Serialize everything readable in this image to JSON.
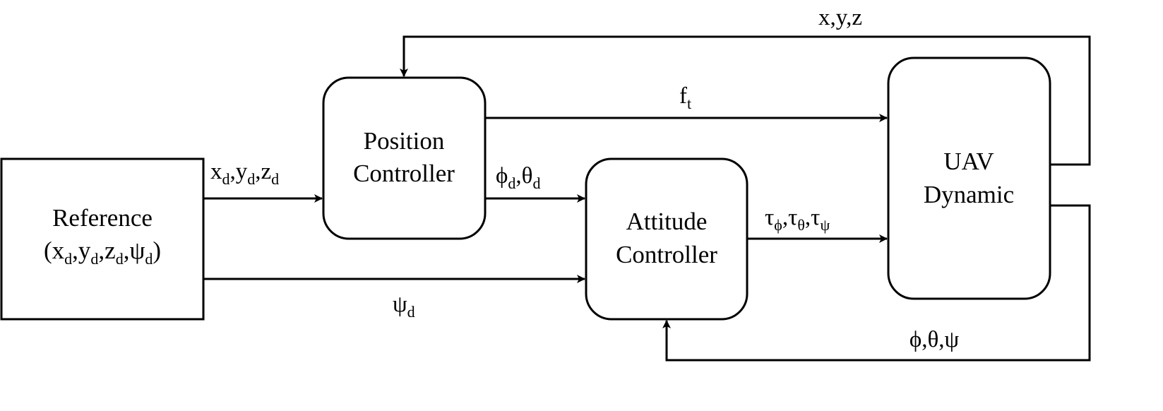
{
  "blocks": {
    "reference": {
      "line1": "Reference",
      "line2": "(x_d,y_d,z_d,ψ_d)"
    },
    "position_controller": {
      "line1": "Position",
      "line2": "Controller"
    },
    "attitude_controller": {
      "line1": "Attitude",
      "line2": "Controller"
    },
    "uav_dynamic": {
      "line1": "UAV",
      "line2": "Dynamic"
    }
  },
  "signals": {
    "xyz_desired": "x_d,y_d,z_d",
    "psi_desired": "ψ_d",
    "thrust": "f_t",
    "angles_desired": "ϕ_d,θ_d",
    "torques": "τ_ϕ,τ_θ,τ_ψ",
    "position_feedback": "x,y,z",
    "attitude_feedback": "ϕ,θ,ψ"
  }
}
